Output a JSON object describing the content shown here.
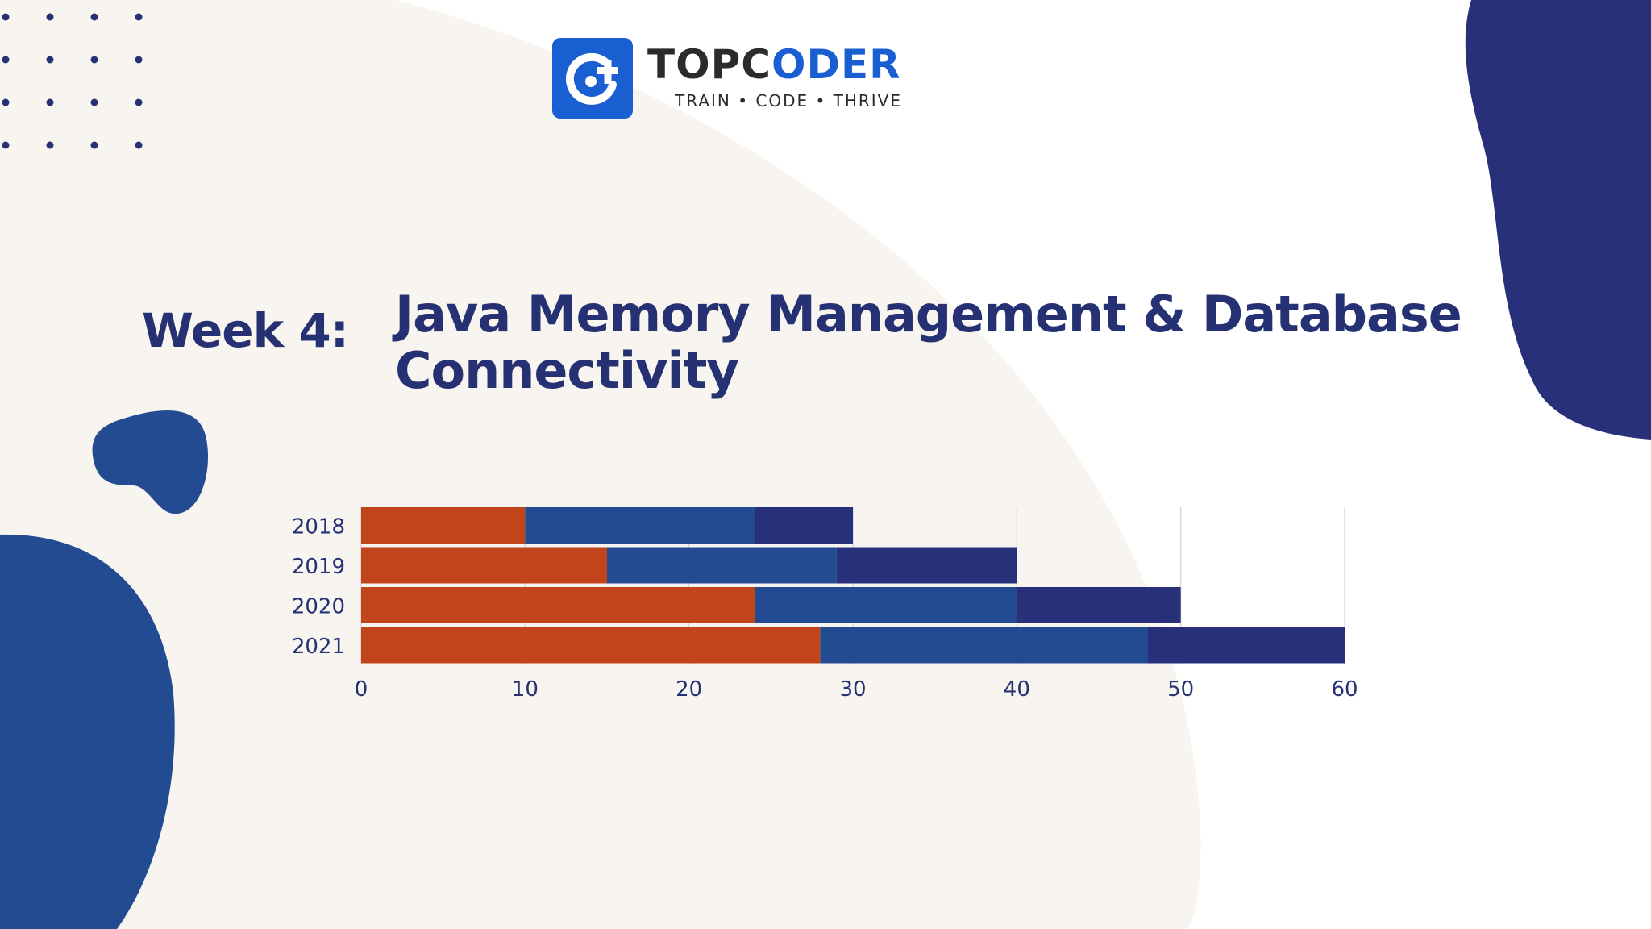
{
  "logo": {
    "word_dark": "TOPC",
    "word_blue": "ODER",
    "tagline": "TRAIN • CODE • THRIVE"
  },
  "heading": {
    "week": "Week 4:",
    "title_line1": "Java Memory Management & Database",
    "title_line2": "Connectivity"
  },
  "colors": {
    "navy": "#253172",
    "blue": "#234b92",
    "orange": "#c2441b",
    "beige": "#f8f4f0",
    "grid": "#d9d9d9",
    "axis_text": "#253172"
  },
  "chart_data": {
    "type": "bar",
    "orientation": "horizontal",
    "stacked": true,
    "categories": [
      "2018",
      "2019",
      "2020",
      "2021"
    ],
    "series": [
      {
        "values": [
          10,
          15,
          24,
          28
        ],
        "color": "#c2441b"
      },
      {
        "values": [
          14,
          14,
          16,
          20
        ],
        "color": "#234b92"
      },
      {
        "values": [
          6,
          11,
          10,
          12
        ],
        "color": "#28307a"
      }
    ],
    "xlim": [
      0,
      60
    ],
    "xticks": [
      "0",
      "10",
      "20",
      "30",
      "40",
      "50",
      "60"
    ],
    "grid": true,
    "legend": "none",
    "title": "",
    "xlabel": "",
    "ylabel": ""
  }
}
